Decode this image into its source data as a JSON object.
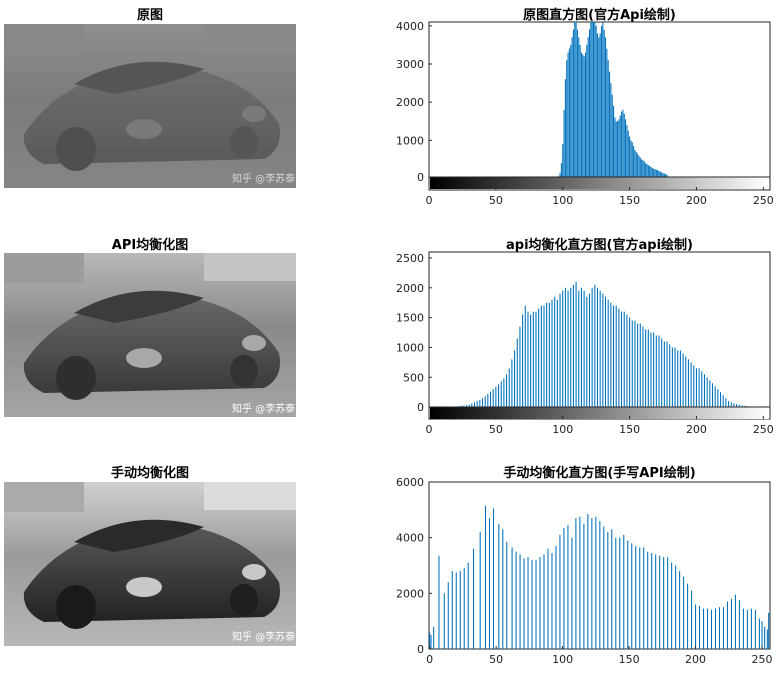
{
  "panels": [
    {
      "title": "原图",
      "watermark": "知乎 @李苏泰",
      "style": "original"
    },
    {
      "title": "API均衡化图",
      "watermark": "知乎 @李苏泰",
      "style": "api"
    },
    {
      "title": "手动均衡化图",
      "watermark": "知乎 @李苏泰",
      "style": "manual"
    }
  ],
  "chart_data": [
    {
      "type": "bar",
      "title": "原图直方图(官方Api绘制)",
      "xlabel": "",
      "ylabel": "",
      "xlim": [
        0,
        255
      ],
      "ylim": [
        -300,
        4100
      ],
      "xticks": [
        0,
        50,
        100,
        150,
        200,
        250
      ],
      "yticks": [
        0,
        1000,
        2000,
        3000,
        4000
      ],
      "colorbar": true,
      "grid": false,
      "color": "#0072BD",
      "x": [
        96,
        97,
        98,
        99,
        100,
        101,
        102,
        103,
        104,
        105,
        106,
        107,
        108,
        109,
        110,
        111,
        112,
        113,
        114,
        115,
        116,
        117,
        118,
        119,
        120,
        121,
        122,
        123,
        124,
        125,
        126,
        127,
        128,
        129,
        130,
        131,
        132,
        133,
        134,
        135,
        136,
        137,
        138,
        139,
        140,
        141,
        142,
        143,
        144,
        145,
        146,
        147,
        148,
        149,
        150,
        151,
        152,
        153,
        154,
        155,
        156,
        157,
        158,
        159,
        160,
        161,
        162,
        163,
        164,
        165,
        166,
        167,
        168,
        169,
        170,
        171,
        172,
        173,
        174,
        175,
        176,
        177,
        178
      ],
      "values": [
        20,
        60,
        150,
        400,
        900,
        1800,
        2600,
        3100,
        3300,
        3400,
        3500,
        3700,
        3900,
        4100,
        4100,
        3900,
        3700,
        3500,
        3300,
        3250,
        3200,
        3300,
        3500,
        3700,
        3900,
        4100,
        4100,
        4100,
        4100,
        4000,
        3800,
        3700,
        3800,
        4000,
        4100,
        3900,
        3700,
        3400,
        3100,
        2800,
        2500,
        2200,
        1900,
        1600,
        1500,
        1500,
        1550,
        1650,
        1750,
        1800,
        1700,
        1550,
        1400,
        1250,
        1100,
        1000,
        950,
        850,
        750,
        700,
        650,
        600,
        550,
        500,
        480,
        450,
        400,
        380,
        350,
        330,
        300,
        280,
        250,
        250,
        230,
        220,
        200,
        180,
        160,
        140,
        130,
        120,
        100
      ]
    },
    {
      "type": "bar",
      "title": "api均衡化直方图(官方api绘制)",
      "xlabel": "",
      "ylabel": "",
      "xlim": [
        0,
        255
      ],
      "ylim": [
        -200,
        2600
      ],
      "xticks": [
        0,
        50,
        100,
        150,
        200,
        250
      ],
      "yticks": [
        0,
        500,
        1000,
        1500,
        2000,
        2500
      ],
      "colorbar": true,
      "grid": false,
      "color": "#0072BD",
      "x": [
        18,
        20,
        22,
        24,
        26,
        28,
        30,
        32,
        34,
        36,
        38,
        40,
        42,
        44,
        46,
        48,
        50,
        52,
        54,
        56,
        58,
        60,
        62,
        64,
        66,
        68,
        70,
        72,
        74,
        76,
        78,
        80,
        82,
        84,
        86,
        88,
        90,
        92,
        94,
        96,
        98,
        100,
        102,
        104,
        106,
        108,
        110,
        112,
        114,
        116,
        118,
        120,
        122,
        124,
        126,
        128,
        130,
        132,
        134,
        136,
        138,
        140,
        142,
        144,
        146,
        148,
        150,
        152,
        154,
        156,
        158,
        160,
        162,
        164,
        166,
        168,
        170,
        172,
        174,
        176,
        178,
        180,
        182,
        184,
        186,
        188,
        190,
        192,
        194,
        196,
        198,
        200,
        202,
        204,
        206,
        208,
        210,
        212,
        214,
        216,
        218,
        220,
        222,
        224,
        226,
        228,
        230,
        232,
        234,
        236,
        238,
        240,
        242,
        244,
        246,
        248,
        250,
        252,
        254
      ],
      "values": [
        5,
        10,
        15,
        20,
        25,
        30,
        40,
        60,
        80,
        100,
        120,
        150,
        180,
        220,
        260,
        300,
        340,
        380,
        430,
        480,
        550,
        650,
        800,
        950,
        1150,
        1350,
        1550,
        1700,
        1600,
        1550,
        1600,
        1600,
        1650,
        1700,
        1700,
        1750,
        1750,
        1800,
        1850,
        1800,
        1900,
        1950,
        2000,
        1950,
        2000,
        2050,
        2100,
        1950,
        2000,
        1950,
        1850,
        1900,
        2000,
        2050,
        2000,
        1950,
        1900,
        1850,
        1800,
        1750,
        1700,
        1700,
        1650,
        1600,
        1600,
        1550,
        1500,
        1450,
        1450,
        1400,
        1400,
        1350,
        1300,
        1300,
        1250,
        1250,
        1200,
        1200,
        1150,
        1100,
        1100,
        1050,
        1000,
        1000,
        950,
        950,
        900,
        850,
        800,
        750,
        700,
        650,
        650,
        600,
        550,
        500,
        450,
        400,
        350,
        300,
        250,
        200,
        150,
        100,
        80,
        60,
        50,
        40,
        30,
        20,
        15,
        10,
        10,
        5,
        5,
        5,
        5,
        5,
        5
      ]
    },
    {
      "type": "bar",
      "title": "手动均衡化直方图(手写API绘制)",
      "xlabel": "",
      "ylabel": "",
      "xlim": [
        -0.5,
        256
      ],
      "ylim": [
        0,
        6000
      ],
      "xticks": [
        0,
        50,
        100,
        150,
        200,
        250
      ],
      "yticks": [
        0,
        2000,
        4000,
        6000
      ],
      "colorbar": false,
      "grid": false,
      "color": "#0072BD",
      "x": [
        0,
        1,
        3,
        7,
        11,
        14,
        17,
        20,
        23,
        26,
        29,
        33,
        38,
        42,
        45,
        48,
        52,
        55,
        58,
        62,
        65,
        68,
        71,
        74,
        77,
        80,
        83,
        86,
        89,
        92,
        95,
        98,
        101,
        104,
        107,
        110,
        113,
        116,
        119,
        122,
        125,
        128,
        131,
        134,
        137,
        140,
        143,
        146,
        149,
        152,
        155,
        158,
        161,
        164,
        167,
        170,
        173,
        176,
        179,
        182,
        185,
        188,
        191,
        194,
        197,
        200,
        203,
        206,
        209,
        212,
        215,
        218,
        221,
        224,
        227,
        230,
        233,
        236,
        239,
        242,
        245,
        248,
        250,
        252,
        254,
        255
      ],
      "values": [
        600,
        500,
        800,
        3350,
        2000,
        2400,
        2800,
        2750,
        2800,
        2900,
        3100,
        3600,
        4200,
        5150,
        4700,
        5050,
        4500,
        4300,
        3850,
        3650,
        3500,
        3400,
        3250,
        3300,
        3200,
        3200,
        3300,
        3400,
        3600,
        3450,
        3700,
        4100,
        4350,
        4450,
        4000,
        4700,
        4750,
        4500,
        4850,
        4700,
        4750,
        4600,
        4400,
        4200,
        4300,
        4000,
        4000,
        4100,
        3900,
        3800,
        3700,
        3650,
        3650,
        3500,
        3450,
        3400,
        3350,
        3300,
        3300,
        3100,
        3000,
        2800,
        2600,
        2350,
        2100,
        1600,
        1550,
        1450,
        1450,
        1400,
        1450,
        1500,
        1500,
        1700,
        1800,
        1950,
        1750,
        1450,
        1400,
        1450,
        1400,
        1100,
        1000,
        800,
        700,
        1300
      ]
    }
  ]
}
